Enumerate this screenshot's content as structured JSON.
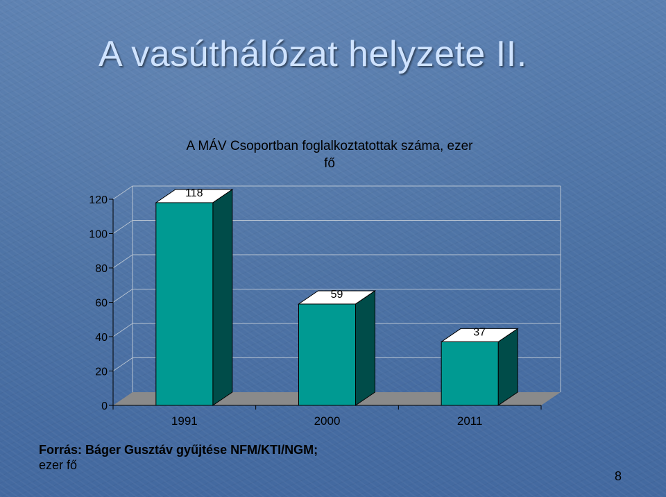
{
  "slide": {
    "title": "A vasúthálózat helyzete II.",
    "source_line": "Forrás: Báger Gusztáv gyűjtése NFM/KTI/NGM;",
    "source_unit": "ezer fő",
    "page_number": "8"
  },
  "chart_data": {
    "type": "bar",
    "title_line1": "A MÁV Csoportban foglalkoztatottak száma, ezer",
    "title_line2": "fő",
    "categories": [
      "1991",
      "2000",
      "2011"
    ],
    "values": [
      118,
      59,
      37
    ],
    "data_labels": [
      "118",
      "59",
      "37"
    ],
    "ylim": [
      0,
      120
    ],
    "yticks": [
      0,
      20,
      40,
      60,
      80,
      100,
      120
    ],
    "grid": true,
    "style": "3d-column",
    "colors": {
      "bar_front": "#009a92",
      "bar_side": "#004c49",
      "bar_top": "#ffffff",
      "floor": "#8a8a8a",
      "grid": "#b8c4d2",
      "text": "#000000"
    }
  }
}
